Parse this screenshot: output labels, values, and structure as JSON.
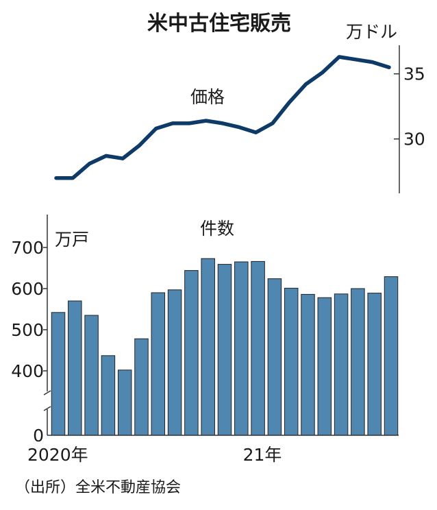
{
  "chart_data": [
    {
      "type": "line",
      "title": "米中古住宅販売",
      "series_label": "価格",
      "unit": "万ドル",
      "yticks": [
        30,
        35
      ],
      "ylim": [
        26,
        37
      ],
      "line_color": "#0d3a66",
      "x": [
        "2020-01",
        "2020-02",
        "2020-03",
        "2020-04",
        "2020-05",
        "2020-06",
        "2020-07",
        "2020-08",
        "2020-09",
        "2020-10",
        "2020-11",
        "2020-12",
        "2021-01",
        "2021-02",
        "2021-03",
        "2021-04",
        "2021-05",
        "2021-06",
        "2021-07",
        "2021-08",
        "2021-09"
      ],
      "values": [
        27.0,
        27.0,
        28.1,
        28.7,
        28.5,
        29.5,
        30.8,
        31.2,
        31.2,
        31.4,
        31.2,
        30.9,
        30.5,
        31.2,
        32.8,
        34.2,
        35.1,
        36.3,
        36.1,
        35.9,
        35.5
      ]
    },
    {
      "type": "bar",
      "series_label": "件数",
      "unit": "万戸",
      "yticks": [
        0,
        400,
        500,
        600,
        700
      ],
      "axis_break": [
        0,
        400
      ],
      "bar_color": "#4f87b0",
      "xtick_labels": [
        {
          "index": 0,
          "label": "2020年"
        },
        {
          "index": 12,
          "label": "21年"
        }
      ],
      "x": [
        "2020-01",
        "2020-02",
        "2020-03",
        "2020-04",
        "2020-05",
        "2020-06",
        "2020-07",
        "2020-08",
        "2020-09",
        "2020-10",
        "2020-11",
        "2020-12",
        "2021-01",
        "2021-02",
        "2021-03",
        "2021-04",
        "2021-05",
        "2021-06",
        "2021-07",
        "2021-08",
        "2021-09"
      ],
      "values": [
        542,
        570,
        535,
        437,
        402,
        478,
        590,
        597,
        644,
        673,
        659,
        665,
        666,
        624,
        601,
        586,
        578,
        587,
        600,
        589,
        629
      ]
    }
  ],
  "source": "（出所）全米不動産協会"
}
